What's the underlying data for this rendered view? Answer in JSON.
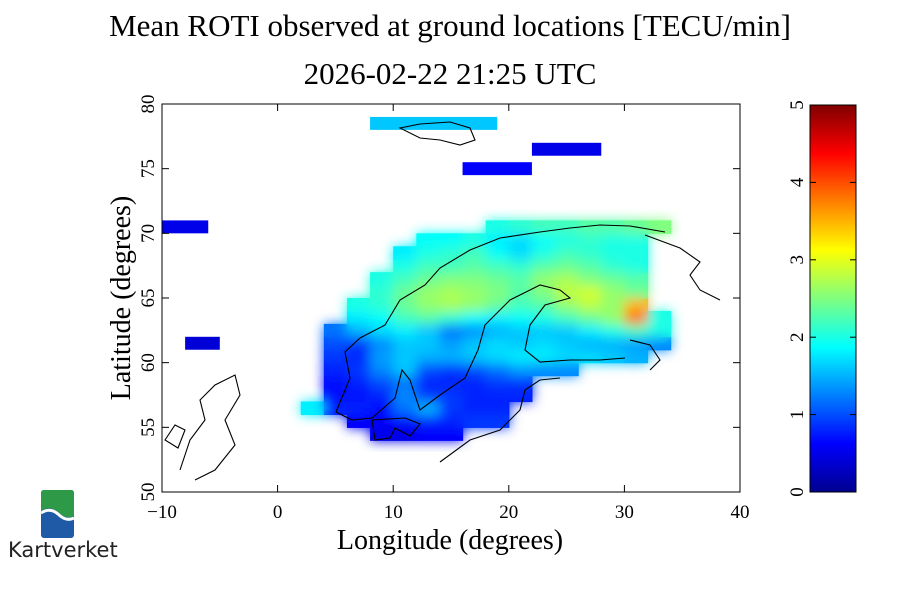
{
  "title": {
    "line1": "Mean ROTI observed at ground locations [TECU/min]",
    "line2": "2026-02-22 21:25 UTC"
  },
  "logo": {
    "text": "Kartverket",
    "icon": "kartverket-wave-logo"
  },
  "colors": {
    "logo_green": "#2e9a48",
    "logo_blue": "#1f5aa6"
  },
  "chart_data": {
    "type": "heatmap",
    "title": "Mean ROTI observed at ground locations [TECU/min]",
    "subtitle": "2026-02-22 21:25 UTC",
    "xlabel": "Longitude (degrees)",
    "ylabel": "Latitude (degrees)",
    "xlim": [
      -10,
      40
    ],
    "ylim": [
      50,
      80
    ],
    "xticks": [
      "−10",
      "0",
      "10",
      "20",
      "30",
      "40"
    ],
    "yticks": [
      "50",
      "55",
      "60",
      "65",
      "70",
      "75",
      "80"
    ],
    "colorbar": {
      "range": [
        0,
        5
      ],
      "colormap": "jet",
      "ticks": [
        "0",
        "1",
        "2",
        "3",
        "4",
        "5"
      ]
    },
    "cell_size_deg": {
      "lon": 2,
      "lat": 1
    },
    "rows": [
      {
        "lat": 54,
        "lon0": 8,
        "values": [
          0.5,
          0.5,
          0.6,
          0.6
        ]
      },
      {
        "lat": 55,
        "lon0": 6,
        "values": [
          0.6,
          0.6,
          0.7,
          0.8,
          0.8,
          0.9,
          0.9
        ]
      },
      {
        "lat": 56,
        "lon0": 2,
        "values": [
          1.8,
          0.8,
          0.8,
          0.7,
          1.2,
          1.5,
          0.9,
          0.8,
          0.8
        ]
      },
      {
        "lat": 57,
        "lon0": 4,
        "values": [
          0.7,
          0.7,
          0.8,
          1.3,
          0.9,
          0.9,
          0.8,
          0.8,
          0.8
        ]
      },
      {
        "lat": 58,
        "lon0": 4,
        "values": [
          0.7,
          0.8,
          1.0,
          1.2,
          0.8,
          0.8,
          0.8,
          0.9,
          0.9
        ]
      },
      {
        "lat": 59,
        "lon0": 4,
        "values": [
          0.8,
          0.9,
          1.3,
          1.6,
          1.0,
          0.9,
          1.0,
          1.2,
          1.4,
          1.3,
          1.3
        ]
      },
      {
        "lat": 60,
        "lon0": 4,
        "values": [
          0.9,
          0.8,
          1.4,
          1.6,
          1.5,
          1.5,
          1.6,
          1.7,
          1.8,
          1.8,
          1.7,
          1.7,
          1.6,
          1.5
        ]
      },
      {
        "lat": 61,
        "lon0": 4,
        "values": [
          1.0,
          0.9,
          1.3,
          1.6,
          1.6,
          1.4,
          1.6,
          1.7,
          1.6,
          1.7,
          1.6,
          1.5,
          1.5,
          1.4,
          1.3
        ]
      },
      {
        "lat": 62,
        "lon0": 4,
        "values": [
          1.2,
          1.5,
          1.7,
          1.8,
          1.6,
          1.2,
          1.3,
          1.5,
          1.6,
          1.6,
          1.6,
          1.8,
          2.0,
          2.2,
          2.0
        ]
      },
      {
        "lat": 63,
        "lon0": 6,
        "values": [
          1.8,
          1.9,
          2.2,
          2.3,
          2.1,
          1.9,
          1.8,
          1.9,
          2.0,
          2.2,
          2.4,
          2.6,
          3.8,
          2.0
        ]
      },
      {
        "lat": 64,
        "lon0": 6,
        "values": [
          2.0,
          2.1,
          2.4,
          2.6,
          2.7,
          2.6,
          2.4,
          2.2,
          2.3,
          2.6,
          2.8,
          2.6,
          3.5
        ]
      },
      {
        "lat": 65,
        "lon0": 8,
        "values": [
          2.1,
          2.4,
          2.6,
          2.7,
          2.6,
          2.5,
          2.3,
          2.5,
          2.8,
          2.9,
          2.6,
          2.4
        ]
      },
      {
        "lat": 66,
        "lon0": 8,
        "values": [
          2.0,
          2.2,
          2.4,
          2.5,
          2.5,
          2.4,
          2.3,
          2.6,
          2.7,
          2.5,
          2.4,
          2.3
        ]
      },
      {
        "lat": 67,
        "lon0": 10,
        "values": [
          2.0,
          2.2,
          2.2,
          2.3,
          2.2,
          2.1,
          2.3,
          2.4,
          2.3,
          2.1,
          2.0
        ]
      },
      {
        "lat": 68,
        "lon0": 10,
        "values": [
          1.8,
          2.0,
          2.1,
          2.2,
          1.9,
          1.7,
          2.0,
          2.2,
          2.1,
          2.0,
          2.0
        ]
      },
      {
        "lat": 69,
        "lon0": 12,
        "values": [
          1.9,
          1.9,
          2.0,
          1.8,
          1.7,
          1.9,
          2.0,
          2.1,
          2.0,
          2.0
        ]
      },
      {
        "lat": 70,
        "lon0": 18,
        "values": [
          2.0,
          2.1,
          2.2,
          2.2,
          2.3,
          2.3,
          2.4,
          2.5
        ]
      }
    ],
    "isolated_cells": [
      {
        "lat": 78,
        "lon0": 8,
        "lon1": 19,
        "value": 1.6
      },
      {
        "lat": 76,
        "lon0": 22,
        "lon1": 28,
        "value": 0.5
      },
      {
        "lat": 74.5,
        "lon0": 16,
        "lon1": 22,
        "value": 0.6
      },
      {
        "lat": 70,
        "lon0": -10,
        "lon1": -6,
        "value": 0.5
      },
      {
        "lat": 61,
        "lon0": -8,
        "lon1": -5,
        "value": 0.4
      }
    ]
  }
}
